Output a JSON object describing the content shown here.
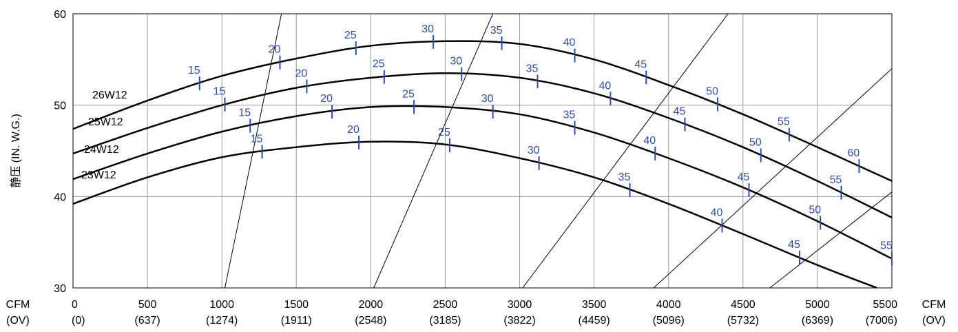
{
  "chart_data": {
    "type": "line",
    "title": "",
    "xlabel_left": "CFM\n(OV)",
    "xlabel_right": "CFM\n(OV)",
    "ylabel": "静压 (IN. W.G.)",
    "xlim": [
      0,
      5500
    ],
    "ylim": [
      30,
      60
    ],
    "grid": true,
    "x_ticks": [
      0,
      500,
      1000,
      1500,
      2000,
      2500,
      3000,
      3500,
      4000,
      4500,
      5000,
      5500
    ],
    "x_ticks_ov": [
      "(0)",
      "(637)",
      "(1274)",
      "(1911)",
      "(2548)",
      "(3185)",
      "(3822)",
      "(4459)",
      "(5096)",
      "(5732)",
      "(6369)",
      "(7006)"
    ],
    "y_ticks": [
      30,
      40,
      50,
      60
    ],
    "series": [
      {
        "name": "26W12",
        "x": [
          0,
          500,
          1000,
          1500,
          2000,
          2500,
          3000,
          3500,
          4000,
          4500,
          5000,
          5500
        ],
        "values": [
          47.4,
          50.5,
          53.2,
          55.1,
          56.5,
          57.0,
          56.7,
          55.0,
          52.2,
          49.0,
          45.4,
          41.7
        ],
        "hp_marks": [
          {
            "label": "15",
            "x": 850
          },
          {
            "label": "20",
            "x": 1390
          },
          {
            "label": "25",
            "x": 1900
          },
          {
            "label": "30",
            "x": 2420
          },
          {
            "label": "35",
            "x": 2880
          },
          {
            "label": "40",
            "x": 3370
          },
          {
            "label": "45",
            "x": 3850
          },
          {
            "label": "50",
            "x": 4330
          },
          {
            "label": "55",
            "x": 4810
          },
          {
            "label": "60",
            "x": 5280
          }
        ]
      },
      {
        "name": "25W12",
        "x": [
          0,
          500,
          1000,
          1500,
          2000,
          2500,
          3000,
          3500,
          4000,
          4500,
          5000,
          5500
        ],
        "values": [
          44.7,
          47.5,
          50.0,
          51.9,
          53.0,
          53.5,
          53.0,
          51.3,
          48.6,
          45.4,
          41.7,
          37.7
        ],
        "hp_marks": [
          {
            "label": "15",
            "x": 1020
          },
          {
            "label": "20",
            "x": 1570
          },
          {
            "label": "25",
            "x": 2090
          },
          {
            "label": "30",
            "x": 2610
          },
          {
            "label": "35",
            "x": 3120
          },
          {
            "label": "40",
            "x": 3610
          },
          {
            "label": "45",
            "x": 4110
          },
          {
            "label": "50",
            "x": 4620
          },
          {
            "label": "55",
            "x": 5160
          }
        ]
      },
      {
        "name": "24W12",
        "x": [
          0,
          500,
          1000,
          1500,
          2000,
          2500,
          3000,
          3500,
          4000,
          4500,
          5000,
          5500
        ],
        "values": [
          41.9,
          44.7,
          47.1,
          48.8,
          49.8,
          49.8,
          49.0,
          47.0,
          44.2,
          41.0,
          37.3,
          33.2
        ],
        "hp_marks": [
          {
            "label": "15",
            "x": 1190
          },
          {
            "label": "20",
            "x": 1740
          },
          {
            "label": "25",
            "x": 2290
          },
          {
            "label": "30",
            "x": 2820
          },
          {
            "label": "35",
            "x": 3370
          },
          {
            "label": "40",
            "x": 3910
          },
          {
            "label": "45",
            "x": 4540
          },
          {
            "label": "50",
            "x": 5020
          },
          {
            "label": "55",
            "x": 5500
          }
        ]
      },
      {
        "name": "23W12",
        "x": [
          0,
          500,
          1000,
          1500,
          2000,
          2500,
          3000,
          3500,
          4000,
          4500,
          5000,
          5400
        ],
        "values": [
          39.2,
          42.1,
          44.3,
          45.4,
          46.0,
          45.7,
          44.2,
          42.1,
          39.2,
          35.9,
          32.5,
          30.0
        ],
        "hp_marks": [
          {
            "label": "15",
            "x": 1270
          },
          {
            "label": "20",
            "x": 1920
          },
          {
            "label": "25",
            "x": 2530
          },
          {
            "label": "30",
            "x": 3130
          },
          {
            "label": "35",
            "x": 3740
          },
          {
            "label": "40",
            "x": 4360
          },
          {
            "label": "45",
            "x": 4880
          }
        ]
      }
    ],
    "system_curves": [
      {
        "x": [
          1020,
          1400
        ],
        "y": [
          30,
          60
        ]
      },
      {
        "x": [
          2020,
          2820
        ],
        "y": [
          30,
          60
        ]
      },
      {
        "x": [
          3020,
          4400
        ],
        "y": [
          30,
          60
        ]
      },
      {
        "x": [
          3900,
          5500
        ],
        "y": [
          30,
          54
        ]
      },
      {
        "x": [
          4680,
          5500
        ],
        "y": [
          30,
          40.5
        ]
      }
    ],
    "colors": {
      "curve": "#000000",
      "hp_mark": "#2e4ea0",
      "grid": "#9a9a9a",
      "axis": "#000000"
    }
  }
}
